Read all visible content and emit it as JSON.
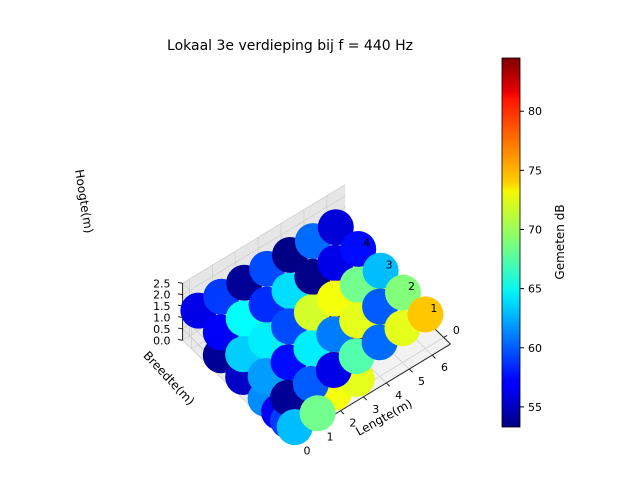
{
  "chart_data": {
    "type": "scatter3d",
    "title": "Lokaal 3e verdieping bij f = 440 Hz",
    "xlabel": "Lengte(m)",
    "ylabel": "Breedte(m)",
    "zlabel": "Hoogte(m)",
    "xlim": [
      -0.3,
      6.8
    ],
    "ylim": [
      -0.3,
      4.4
    ],
    "zlim": [
      0,
      2.5
    ],
    "x_ticks": [
      "0",
      "1",
      "2",
      "3",
      "4",
      "5",
      "6"
    ],
    "y_ticks": [
      "0",
      "1",
      "2",
      "3",
      "4"
    ],
    "z_ticks": [
      "0.0",
      "0.5",
      "1.0",
      "1.5",
      "2.0",
      "2.5"
    ],
    "colormap": "jet",
    "colorbar": {
      "label": "Gemeten dB",
      "range": [
        53.3,
        84.5
      ],
      "ticks": [
        "55",
        "60",
        "65",
        "70",
        "75",
        "80"
      ]
    },
    "grid": true,
    "points": [
      {
        "x": 0,
        "y": 4,
        "z": 1.5,
        "db": 56.5
      },
      {
        "x": 1,
        "y": 4,
        "z": 1.5,
        "db": 59.0
      },
      {
        "x": 2,
        "y": 4,
        "z": 1.5,
        "db": 54.0
      },
      {
        "x": 3,
        "y": 4,
        "z": 1.5,
        "db": 59.5
      },
      {
        "x": 4,
        "y": 4,
        "z": 1.5,
        "db": 53.5
      },
      {
        "x": 5,
        "y": 4,
        "z": 1.5,
        "db": 60.5
      },
      {
        "x": 6,
        "y": 4,
        "z": 1.5,
        "db": 56.0
      },
      {
        "x": 0,
        "y": 3,
        "z": 1.5,
        "db": 57.0
      },
      {
        "x": 1,
        "y": 3,
        "z": 1.5,
        "db": 65.0
      },
      {
        "x": 2,
        "y": 3,
        "z": 1.5,
        "db": 58.5
      },
      {
        "x": 3,
        "y": 3,
        "z": 1.5,
        "db": 64.0
      },
      {
        "x": 4,
        "y": 3,
        "z": 1.5,
        "db": 53.6
      },
      {
        "x": 5,
        "y": 3,
        "z": 1.5,
        "db": 56.5
      },
      {
        "x": 6,
        "y": 3,
        "z": 1.5,
        "db": 57.5
      },
      {
        "x": 0,
        "y": 2,
        "z": 1.5,
        "db": 63.5
      },
      {
        "x": 1,
        "y": 2,
        "z": 1.5,
        "db": 64.5
      },
      {
        "x": 2,
        "y": 2,
        "z": 1.5,
        "db": 59.5
      },
      {
        "x": 3,
        "y": 2,
        "z": 1.5,
        "db": 71.5
      },
      {
        "x": 4,
        "y": 2,
        "z": 1.5,
        "db": 72.5
      },
      {
        "x": 5,
        "y": 2,
        "z": 1.5,
        "db": 68.5
      },
      {
        "x": 6,
        "y": 2,
        "z": 1.5,
        "db": 63.0
      },
      {
        "x": 0,
        "y": 1,
        "z": 1.5,
        "db": 62.0
      },
      {
        "x": 1,
        "y": 1,
        "z": 1.5,
        "db": 57.5
      },
      {
        "x": 2,
        "y": 1,
        "z": 1.5,
        "db": 64.5
      },
      {
        "x": 3,
        "y": 1,
        "z": 1.5,
        "db": 61.0
      },
      {
        "x": 4,
        "y": 1,
        "z": 1.5,
        "db": 72.0
      },
      {
        "x": 5,
        "y": 1,
        "z": 1.5,
        "db": 60.0
      },
      {
        "x": 6,
        "y": 1,
        "z": 1.5,
        "db": 69.0
      },
      {
        "x": 0,
        "y": 0,
        "z": 1.5,
        "db": 54.0
      },
      {
        "x": 1,
        "y": 0,
        "z": 1.5,
        "db": 60.0
      },
      {
        "x": 2,
        "y": 0,
        "z": 1.5,
        "db": 56.5
      },
      {
        "x": 3,
        "y": 0,
        "z": 1.5,
        "db": 67.5
      },
      {
        "x": 4,
        "y": 0,
        "z": 1.5,
        "db": 60.5
      },
      {
        "x": 5,
        "y": 0,
        "z": 1.5,
        "db": 72.0
      },
      {
        "x": 6,
        "y": 0,
        "z": 1.5,
        "db": 74.5
      },
      {
        "x": 0,
        "y": 3,
        "z": 0.5,
        "db": 54.0
      },
      {
        "x": 1,
        "y": 3,
        "z": 0.5,
        "db": 64.0
      },
      {
        "x": 2,
        "y": 3,
        "z": 0.5,
        "db": 71.0
      },
      {
        "x": 3,
        "y": 3,
        "z": 0.5,
        "db": 62.0
      },
      {
        "x": 4,
        "y": 3,
        "z": 0.5,
        "db": 74.5
      },
      {
        "x": 5,
        "y": 3,
        "z": 0.5,
        "db": 76.0
      },
      {
        "x": 6,
        "y": 3,
        "z": 0.5,
        "db": 71.5
      },
      {
        "x": 0,
        "y": 2,
        "z": 0.5,
        "db": 55.5
      },
      {
        "x": 1,
        "y": 2,
        "z": 0.5,
        "db": 65.0
      },
      {
        "x": 2,
        "y": 2,
        "z": 0.5,
        "db": 70.0
      },
      {
        "x": 3,
        "y": 2,
        "z": 0.5,
        "db": 69.5
      },
      {
        "x": 4,
        "y": 2,
        "z": 0.5,
        "db": 84.0
      },
      {
        "x": 5,
        "y": 2,
        "z": 0.5,
        "db": 74.0
      },
      {
        "x": 6,
        "y": 2,
        "z": 0.5,
        "db": 73.0
      },
      {
        "x": 0,
        "y": 1,
        "z": 0.5,
        "db": 61.5
      },
      {
        "x": 1,
        "y": 1,
        "z": 0.5,
        "db": 61.0
      },
      {
        "x": 2,
        "y": 1,
        "z": 0.5,
        "db": 69.5
      },
      {
        "x": 3,
        "y": 1,
        "z": 0.5,
        "db": 77.5
      },
      {
        "x": 4,
        "y": 1,
        "z": 0.5,
        "db": 82.5
      },
      {
        "x": 5,
        "y": 1,
        "z": 0.5,
        "db": 72.0
      },
      {
        "x": 0,
        "y": 0,
        "z": 0.5,
        "db": 59.0
      },
      {
        "x": 1,
        "y": 0,
        "z": 0.5,
        "db": 71.0
      },
      {
        "x": 2,
        "y": 0,
        "z": 0.5,
        "db": 72.5
      },
      {
        "x": 3,
        "y": 0,
        "z": 0.5,
        "db": 72.0
      },
      {
        "x": 0,
        "y": -0.3,
        "z": 0.5,
        "db": 63.0
      },
      {
        "x": 1,
        "y": -0.3,
        "z": 0.5,
        "db": 68.5
      },
      {
        "x": 0,
        "y": 0.4,
        "z": 0.5,
        "db": 57.0
      }
    ]
  }
}
